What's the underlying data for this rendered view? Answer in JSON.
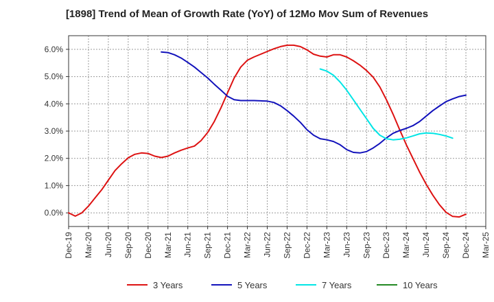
{
  "chart_data": {
    "type": "line",
    "title": "[1898]  Trend of Mean of Growth Rate (YoY) of 12Mo Mov Sum of Revenues",
    "xlabel": "",
    "ylabel": "",
    "ylim": [
      -0.5,
      6.5
    ],
    "yticks": [
      0.0,
      1.0,
      2.0,
      3.0,
      4.0,
      5.0,
      6.0
    ],
    "ytick_labels": [
      "0.0%",
      "1.0%",
      "2.0%",
      "3.0%",
      "4.0%",
      "5.0%",
      "6.0%"
    ],
    "x_labels": [
      "Dec-19",
      "Mar-20",
      "Jun-20",
      "Sep-20",
      "Dec-20",
      "Mar-21",
      "Jun-21",
      "Sep-21",
      "Dec-21",
      "Mar-22",
      "Jun-22",
      "Sep-22",
      "Dec-22",
      "Mar-23",
      "Jun-23",
      "Sep-23",
      "Dec-23",
      "Mar-24",
      "Jun-24",
      "Sep-24",
      "Dec-24",
      "Mar-25"
    ],
    "x_months_total": 63,
    "grid": true,
    "legend_position": "bottom",
    "series": [
      {
        "name": "3 Years",
        "color": "#dd1111",
        "start_month": 0,
        "values": [
          0.0,
          -0.12,
          0.0,
          0.25,
          0.55,
          0.85,
          1.2,
          1.55,
          1.8,
          2.02,
          2.15,
          2.2,
          2.18,
          2.08,
          2.03,
          2.08,
          2.2,
          2.3,
          2.38,
          2.45,
          2.65,
          2.95,
          3.35,
          3.85,
          4.4,
          4.95,
          5.35,
          5.6,
          5.72,
          5.82,
          5.92,
          6.02,
          6.1,
          6.15,
          6.15,
          6.1,
          5.98,
          5.82,
          5.75,
          5.72,
          5.8,
          5.8,
          5.72,
          5.58,
          5.42,
          5.22,
          4.98,
          4.62,
          4.15,
          3.62,
          3.05,
          2.5,
          2.0,
          1.5,
          1.05,
          0.65,
          0.3,
          0.02,
          -0.13,
          -0.15,
          -0.05
        ]
      },
      {
        "name": "5 Years",
        "color": "#1111bb",
        "start_month": 14,
        "values": [
          5.9,
          5.88,
          5.8,
          5.68,
          5.52,
          5.35,
          5.15,
          4.95,
          4.72,
          4.5,
          4.28,
          4.15,
          4.12,
          4.12,
          4.12,
          4.11,
          4.1,
          4.05,
          3.93,
          3.75,
          3.55,
          3.32,
          3.05,
          2.85,
          2.72,
          2.68,
          2.62,
          2.5,
          2.32,
          2.22,
          2.2,
          2.25,
          2.38,
          2.55,
          2.75,
          2.92,
          3.02,
          3.1,
          3.2,
          3.35,
          3.55,
          3.75,
          3.92,
          4.08,
          4.18,
          4.27,
          4.32
        ]
      },
      {
        "name": "7 Years",
        "color": "#00e5e5",
        "start_month": 38,
        "values": [
          5.28,
          5.2,
          5.05,
          4.8,
          4.5,
          4.15,
          3.8,
          3.45,
          3.1,
          2.85,
          2.72,
          2.68,
          2.7,
          2.75,
          2.82,
          2.9,
          2.93,
          2.92,
          2.88,
          2.82,
          2.74
        ]
      },
      {
        "name": "10 Years",
        "color": "#228822",
        "start_month": 0,
        "values": []
      }
    ]
  }
}
